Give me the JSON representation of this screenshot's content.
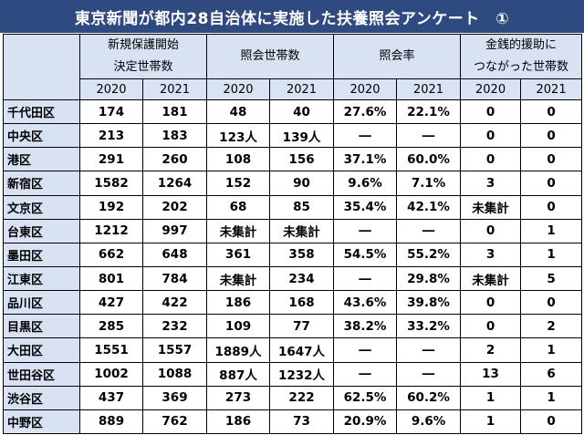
{
  "title": "東京新聞が都内28自治体に実施した扶養照会アンケート　①",
  "header": {
    "groups": [
      {
        "line1": "新規保護開始",
        "line2": "決定世帯数"
      },
      {
        "line1": "照会世帯数",
        "line2": ""
      },
      {
        "line1": "照会率",
        "line2": ""
      },
      {
        "line1": "金銭的援助に",
        "line2": "つながった世帯数"
      }
    ],
    "years": [
      "2020",
      "2021",
      "2020",
      "2021",
      "2020",
      "2021",
      "2020",
      "2021"
    ]
  },
  "rows": [
    {
      "ward": "千代田区",
      "v": [
        "174",
        "181",
        "48",
        "40",
        "27.6%",
        "22.1%",
        "0",
        "0"
      ]
    },
    {
      "ward": "中央区",
      "v": [
        "213",
        "183",
        "123人",
        "139人",
        "―",
        "―",
        "0",
        "0"
      ]
    },
    {
      "ward": "港区",
      "v": [
        "291",
        "260",
        "108",
        "156",
        "37.1%",
        "60.0%",
        "0",
        "0"
      ]
    },
    {
      "ward": "新宿区",
      "v": [
        "1582",
        "1264",
        "152",
        "90",
        "9.6%",
        "7.1%",
        "3",
        "0"
      ]
    },
    {
      "ward": "文京区",
      "v": [
        "192",
        "202",
        "68",
        "85",
        "35.4%",
        "42.1%",
        "未集計",
        "0"
      ]
    },
    {
      "ward": "台東区",
      "v": [
        "1212",
        "997",
        "未集計",
        "未集計",
        "―",
        "―",
        "0",
        "1"
      ]
    },
    {
      "ward": "墨田区",
      "v": [
        "662",
        "648",
        "361",
        "358",
        "54.5%",
        "55.2%",
        "3",
        "1"
      ]
    },
    {
      "ward": "江東区",
      "v": [
        "801",
        "784",
        "未集計",
        "234",
        "―",
        "29.8%",
        "未集計",
        "5"
      ]
    },
    {
      "ward": "品川区",
      "v": [
        "427",
        "422",
        "186",
        "168",
        "43.6%",
        "39.8%",
        "0",
        "0"
      ]
    },
    {
      "ward": "目黒区",
      "v": [
        "285",
        "232",
        "109",
        "77",
        "38.2%",
        "33.2%",
        "0",
        "2"
      ]
    },
    {
      "ward": "大田区",
      "v": [
        "1551",
        "1557",
        "1889人",
        "1647人",
        "―",
        "―",
        "2",
        "1"
      ]
    },
    {
      "ward": "世田谷区",
      "v": [
        "1002",
        "1088",
        "887人",
        "1232人",
        "―",
        "―",
        "13",
        "6"
      ]
    },
    {
      "ward": "渋谷区",
      "v": [
        "437",
        "369",
        "273",
        "222",
        "62.5%",
        "60.2%",
        "1",
        "1"
      ]
    },
    {
      "ward": "中野区",
      "v": [
        "889",
        "762",
        "186",
        "73",
        "20.9%",
        "9.6%",
        "1",
        "0"
      ]
    }
  ]
}
